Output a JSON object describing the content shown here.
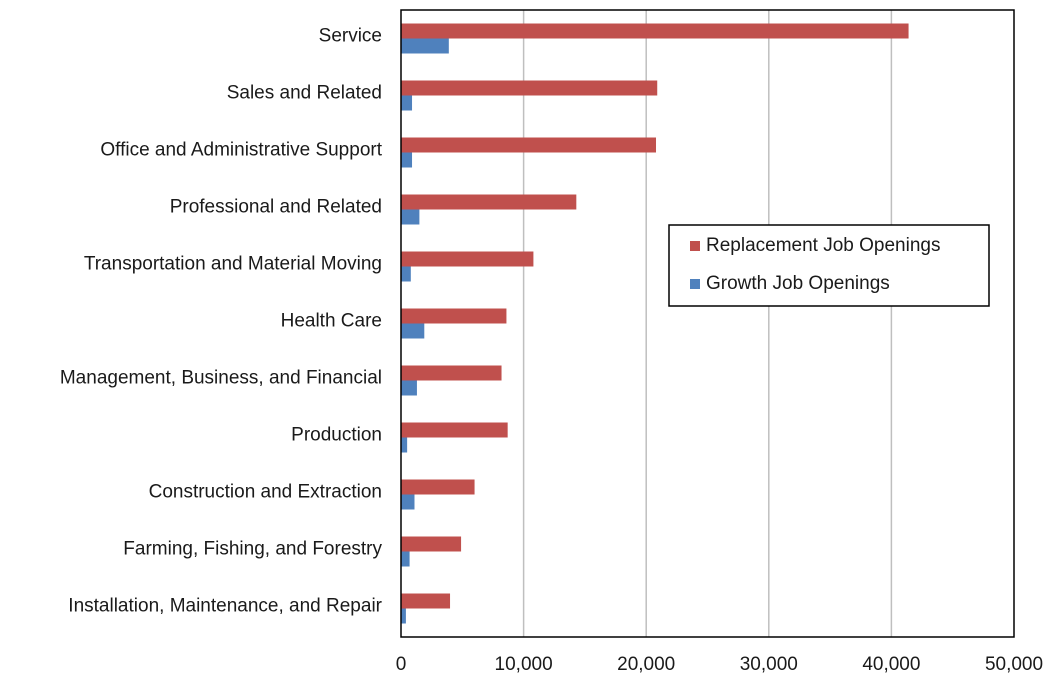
{
  "chart_data": {
    "type": "bar",
    "orientation": "horizontal",
    "title": "",
    "xlabel": "",
    "ylabel": "",
    "categories": [
      "Service",
      "Sales and Related",
      "Office and Administrative Support",
      "Professional and Related",
      "Transportation and Material Moving",
      "Health Care",
      "Management, Business, and Financial",
      "Production",
      "Construction and Extraction",
      "Farming, Fishing, and Forestry",
      "Installation, Maintenance, and Repair"
    ],
    "series": [
      {
        "name": "Replacement Job Openings",
        "color": "#c0504d",
        "values": [
          41400,
          20900,
          20800,
          14300,
          10800,
          8600,
          8200,
          8700,
          6000,
          4900,
          4000
        ]
      },
      {
        "name": "Growth Job Openings",
        "color": "#4f81bd",
        "values": [
          3900,
          900,
          900,
          1500,
          800,
          1900,
          1300,
          500,
          1100,
          700,
          400
        ]
      }
    ],
    "xlim": [
      0,
      50000
    ],
    "xticks": [
      0,
      10000,
      20000,
      30000,
      40000,
      50000
    ],
    "xtick_labels": [
      "0",
      "10,000",
      "20,000",
      "30,000",
      "40,000",
      "50,000"
    ],
    "grid": "vertical",
    "legend": "center-right"
  }
}
